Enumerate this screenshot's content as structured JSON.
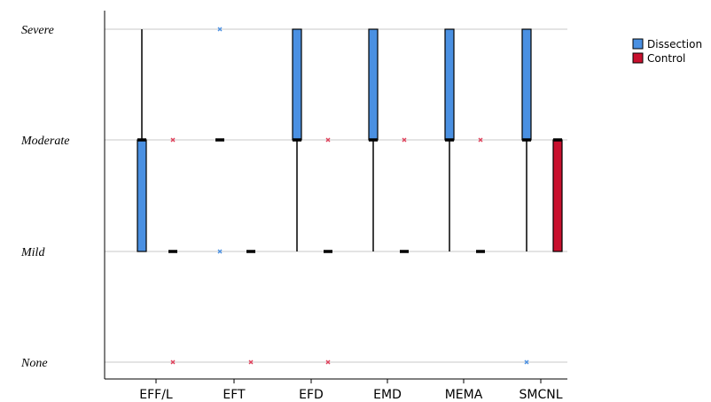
{
  "chart_data": {
    "type": "boxplot",
    "y_levels": [
      "None",
      "Mild",
      "Moderate",
      "Severe"
    ],
    "categories": [
      "EFF/L",
      "EFT",
      "EFD",
      "EMD",
      "MEMA",
      "SMCNL"
    ],
    "series": [
      {
        "name": "Dissection",
        "color": "#4a90e2",
        "outlier_color": "#4a90e2",
        "boxes": [
          {
            "category": "EFF/L",
            "whisker_low": "Mild",
            "q1": "Mild",
            "median": "Moderate",
            "q3": "Moderate",
            "whisker_high": "Severe",
            "outliers": []
          },
          {
            "category": "EFT",
            "whisker_low": "Moderate",
            "q1": "Moderate",
            "median": "Moderate",
            "q3": "Moderate",
            "whisker_high": "Moderate",
            "outliers": [
              "Mild",
              "Severe"
            ]
          },
          {
            "category": "EFD",
            "whisker_low": "Mild",
            "q1": "Moderate",
            "median": "Moderate",
            "q3": "Severe",
            "whisker_high": "Severe",
            "outliers": []
          },
          {
            "category": "EMD",
            "whisker_low": "Mild",
            "q1": "Moderate",
            "median": "Moderate",
            "q3": "Severe",
            "whisker_high": "Severe",
            "outliers": []
          },
          {
            "category": "MEMA",
            "whisker_low": "Mild",
            "q1": "Moderate",
            "median": "Moderate",
            "q3": "Severe",
            "whisker_high": "Severe",
            "outliers": []
          },
          {
            "category": "SMCNL",
            "whisker_low": "Mild",
            "q1": "Moderate",
            "median": "Moderate",
            "q3": "Severe",
            "whisker_high": "Severe",
            "outliers": [
              "None"
            ]
          }
        ]
      },
      {
        "name": "Control",
        "color": "#c8102e",
        "outlier_color": "#e0405a",
        "boxes": [
          {
            "category": "EFF/L",
            "whisker_low": "Mild",
            "q1": "Mild",
            "median": "Mild",
            "q3": "Mild",
            "whisker_high": "Mild",
            "outliers": [
              "None",
              "Moderate"
            ]
          },
          {
            "category": "EFT",
            "whisker_low": "Mild",
            "q1": "Mild",
            "median": "Mild",
            "q3": "Mild",
            "whisker_high": "Mild",
            "outliers": [
              "None"
            ]
          },
          {
            "category": "EFD",
            "whisker_low": "Mild",
            "q1": "Mild",
            "median": "Mild",
            "q3": "Mild",
            "whisker_high": "Mild",
            "outliers": [
              "None",
              "Moderate"
            ]
          },
          {
            "category": "EMD",
            "whisker_low": "Mild",
            "q1": "Mild",
            "median": "Mild",
            "q3": "Mild",
            "whisker_high": "Mild",
            "outliers": [
              "Moderate"
            ]
          },
          {
            "category": "MEMA",
            "whisker_low": "Mild",
            "q1": "Mild",
            "median": "Mild",
            "q3": "Mild",
            "whisker_high": "Mild",
            "outliers": [
              "Moderate"
            ]
          },
          {
            "category": "SMCNL",
            "whisker_low": "Mild",
            "q1": "Mild",
            "median": "Moderate",
            "q3": "Moderate",
            "whisker_high": "Moderate",
            "outliers": []
          }
        ]
      }
    ],
    "grid": true,
    "legend_position": "top-right"
  }
}
